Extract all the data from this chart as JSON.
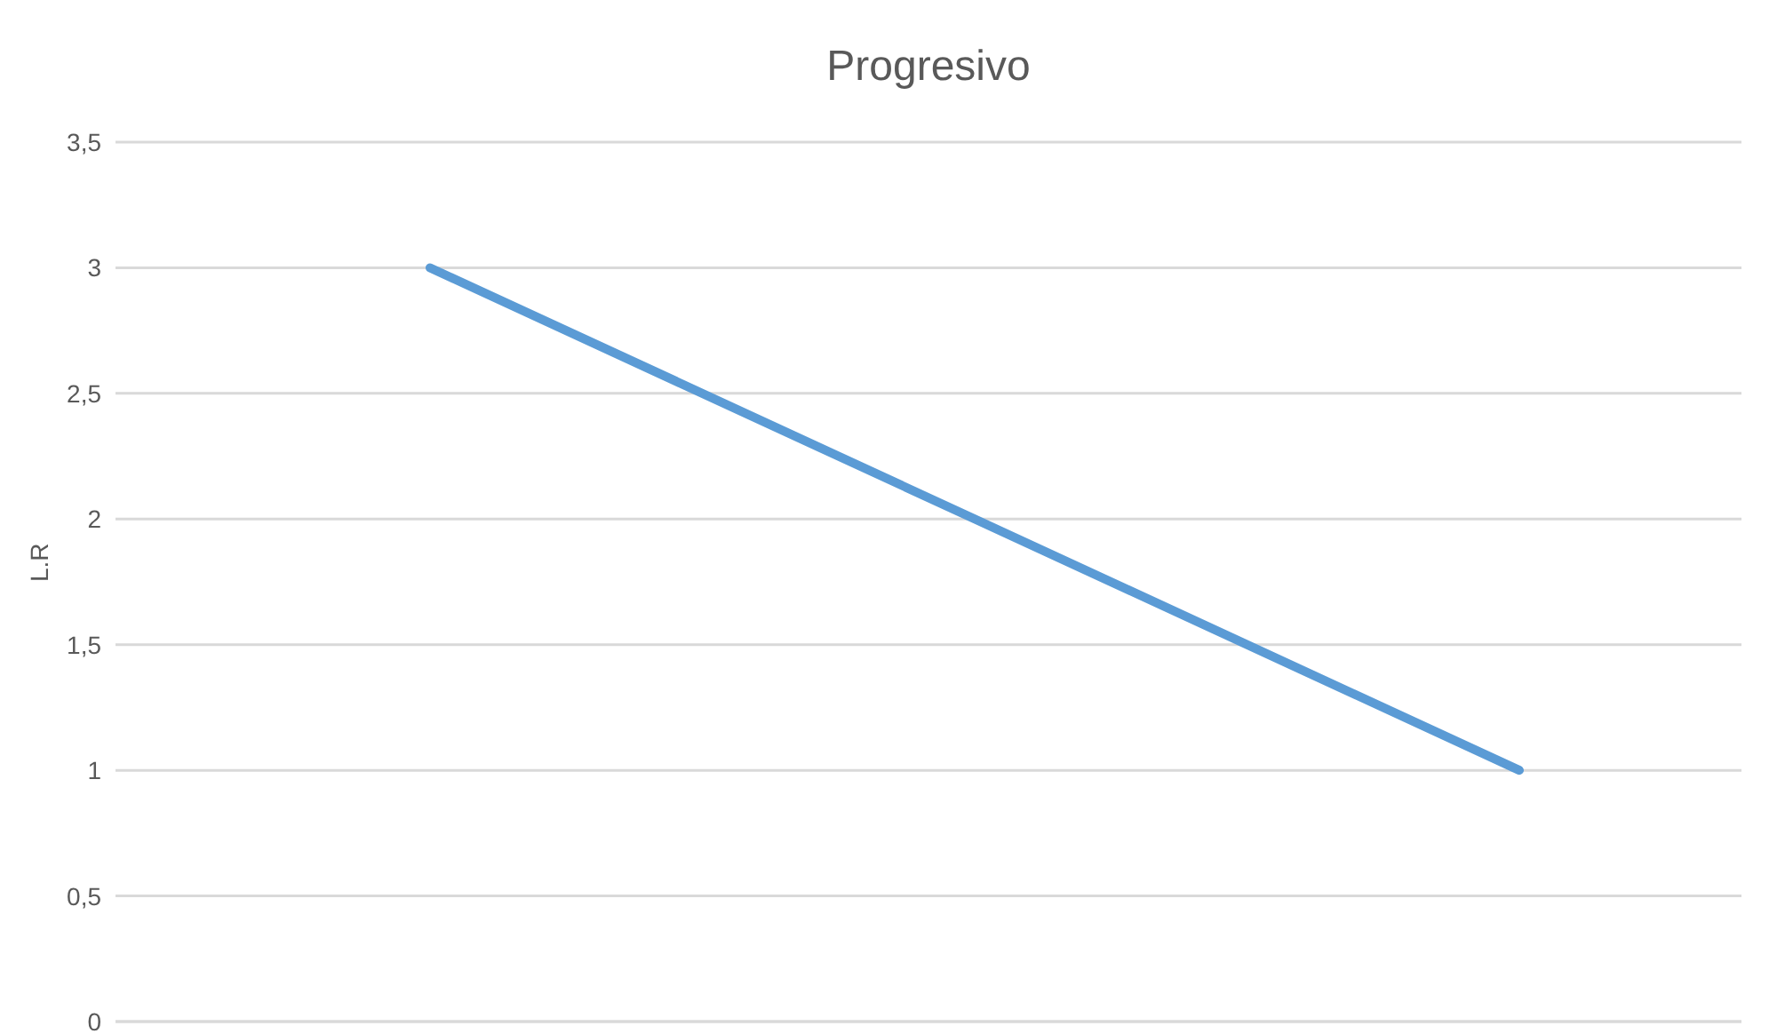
{
  "chart_data": {
    "type": "line",
    "title": "Progresivo",
    "ylabel": "L.R",
    "categories": [
      null,
      null,
      null
    ],
    "series": [
      {
        "color": "#5b9bd5",
        "values": [
          3,
          2,
          1
        ]
      }
    ],
    "ylim": [
      0,
      3.5
    ],
    "yticks": [
      0,
      {
        "value": 0.5,
        "label": "0,5"
      },
      1,
      {
        "value": 1.5,
        "label": "1,5"
      },
      2,
      {
        "value": 2.5,
        "label": "2,5"
      },
      3,
      {
        "value": 3.5,
        "label": "3,5"
      }
    ],
    "grid": "y",
    "legend": false,
    "marker": "none",
    "line_style": "solid"
  }
}
